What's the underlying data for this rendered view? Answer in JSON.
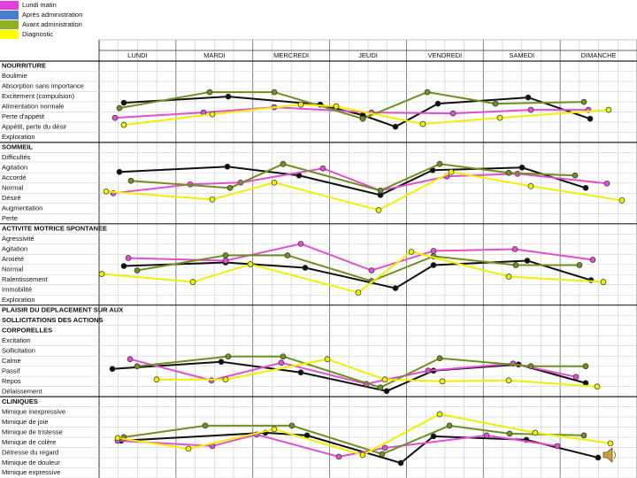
{
  "legend": [
    {
      "label": "Lundi matin",
      "color": "#e040e0"
    },
    {
      "label": "Après administration",
      "color": "#4a7fd0"
    },
    {
      "label": "Avant administration",
      "color": "#8db020"
    },
    {
      "label": "Diagnostic",
      "color": "#ffff00"
    }
  ],
  "days": [
    "LUNDI",
    "MARDI",
    "MERCREDI",
    "JEUDI",
    "VENDREDI",
    "SAMEDI",
    "DIMANCHE"
  ],
  "rows": [
    {
      "text": "NOURRITURE",
      "section": true
    },
    {
      "text": "Boulimie"
    },
    {
      "text": "Absorption sans importance"
    },
    {
      "text": "Excitement (compulsion)"
    },
    {
      "text": "Alimentation normale"
    },
    {
      "text": "Perte d'appétit"
    },
    {
      "text": "Appétit, perte du désir"
    },
    {
      "text": "Exploration"
    },
    {
      "text": "SOMMEIL",
      "section": true
    },
    {
      "text": "Difficultés"
    },
    {
      "text": "Agitation"
    },
    {
      "text": "Accordé"
    },
    {
      "text": "Normal"
    },
    {
      "text": "Désiré"
    },
    {
      "text": "Augmentation"
    },
    {
      "text": "Perte"
    },
    {
      "text": "ACTIVITE MOTRICE SPONTANEE",
      "section": true
    },
    {
      "text": "Agressivité"
    },
    {
      "text": "Agitation"
    },
    {
      "text": "Anxiété"
    },
    {
      "text": "Normal"
    },
    {
      "text": "Ralentissement"
    },
    {
      "text": "Immobilité"
    },
    {
      "text": "Exploration"
    },
    {
      "text": "PLAISIR DU DEPLACEMENT SUR AUX",
      "section": true
    },
    {
      "text": "SOLLICITATIONS DES ACTIONS",
      "section": true
    },
    {
      "text": "CORPORELLES",
      "section": true
    },
    {
      "text": "Excitation"
    },
    {
      "text": "Sollicitation"
    },
    {
      "text": "Calme"
    },
    {
      "text": "Passif"
    },
    {
      "text": "Repos"
    },
    {
      "text": "Délaissement"
    },
    {
      "text": "CLINIQUES",
      "section": true
    },
    {
      "text": "Mimique inexpressive"
    },
    {
      "text": "Mimique de joie"
    },
    {
      "text": "Mimique de tristesse"
    },
    {
      "text": "Mimique de colère"
    },
    {
      "text": "Détresse du regard"
    },
    {
      "text": "Mimique de douleur"
    },
    {
      "text": "Mimique expressive"
    }
  ],
  "chart_data": {
    "type": "line",
    "xlim": [
      0,
      608
    ],
    "ylim": [
      470,
      0
    ],
    "series": [
      {
        "color": "#111111",
        "x": [
          28,
          146,
          250,
          298,
          335,
          383,
          485,
          555,
          null,
          23,
          145,
          226,
          318,
          377,
          478,
          550,
          null,
          28,
          143,
          233,
          335,
          378,
          484,
          556,
          null,
          15,
          138,
          228,
          325,
          378,
          474,
          550,
          null,
          25,
          188,
          235,
          341,
          378,
          483,
          564
        ],
        "values": [
          47,
          40,
          49,
          61,
          74,
          48,
          41,
          65,
          null,
          125,
          119,
          129,
          151,
          123,
          120,
          143,
          null,
          231,
          227,
          233,
          256,
          230,
          225,
          247,
          null,
          347,
          339,
          351,
          372,
          349,
          342,
          363,
          null,
          428,
          419,
          422,
          453,
          423,
          427,
          447
        ]
      },
      {
        "color": "#e050d0",
        "x": [
          18,
          118,
          198,
          308,
          400,
          488,
          553,
          null,
          16,
          103,
          160,
          253,
          318,
          393,
          473,
          574,
          null,
          33,
          143,
          228,
          308,
          378,
          470,
          558,
          null,
          35,
          127,
          206,
          302,
          372,
          468,
          539,
          null,
          21,
          128,
          178,
          271,
          323,
          438,
          518
        ],
        "values": [
          64,
          58,
          52,
          58,
          59,
          55,
          55,
          null,
          149,
          139,
          137,
          121,
          146,
          130,
          127,
          138,
          null,
          222,
          225,
          206,
          236,
          214,
          212,
          224,
          null,
          336,
          360,
          340,
          364,
          349,
          341,
          356,
          null,
          428,
          434,
          421,
          446,
          436,
          422,
          434
        ]
      },
      {
        "color": "#6f9020",
        "x": [
          23,
          125,
          198,
          298,
          371,
          448,
          548,
          null,
          36,
          148,
          208,
          318,
          385,
          463,
          538,
          null,
          43,
          143,
          213,
          308,
          378,
          471,
          543,
          null,
          43,
          146,
          208,
          318,
          385,
          488,
          550,
          null,
          28,
          120,
          218,
          320,
          396,
          464,
          548
        ],
        "values": [
          53,
          35,
          35,
          65,
          35,
          48,
          46,
          null,
          135,
          143,
          116,
          146,
          116,
          126,
          129,
          null,
          236,
          219,
          219,
          248,
          220,
          230,
          230,
          null,
          344,
          333,
          333,
          368,
          335,
          344,
          344,
          null,
          424,
          411,
          411,
          443,
          411,
          420,
          422
        ]
      },
      {
        "color": "#f0f000",
        "x": [
          28,
          128,
          228,
          268,
          366,
          453,
          576,
          null,
          8,
          128,
          198,
          316,
          398,
          488,
          591,
          null,
          3,
          106,
          171,
          293,
          353,
          463,
          570,
          null,
          65,
          143,
          258,
          323,
          388,
          463,
          563,
          null,
          21,
          101,
          198,
          298,
          385,
          493,
          578
        ],
        "values": [
          72,
          60,
          49,
          51,
          71,
          64,
          55,
          null,
          147,
          156,
          137,
          168,
          125,
          141,
          157,
          null,
          240,
          249,
          229,
          261,
          215,
          243,
          249,
          null,
          359,
          359,
          336,
          359,
          361,
          360,
          367,
          null,
          425,
          437,
          415,
          444,
          398,
          419,
          431
        ]
      }
    ]
  }
}
